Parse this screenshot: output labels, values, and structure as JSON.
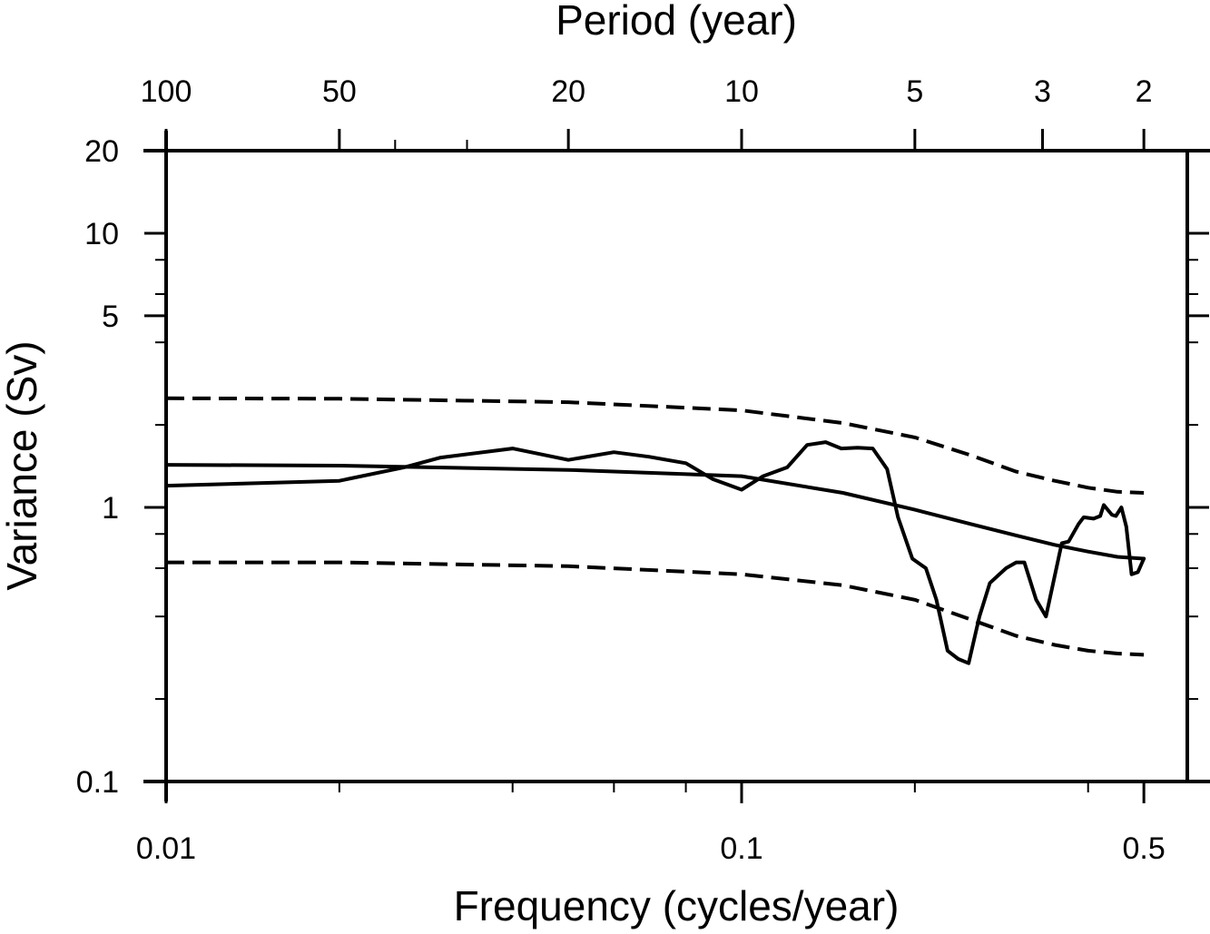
{
  "chart_data": {
    "type": "line",
    "title": "",
    "xlabel": "Frequency (cycles/year)",
    "ylabel": "Variance (Sv)",
    "top_xlabel": "Period (year)",
    "xscale": "log",
    "yscale": "log",
    "xlim": [
      0.01,
      0.5
    ],
    "ylim": [
      0.1,
      20
    ],
    "grid": false,
    "legend": "none",
    "x_ticks": [
      {
        "value": 0.01,
        "label": "0.01"
      },
      {
        "value": 0.1,
        "label": "0.1"
      },
      {
        "value": 0.5,
        "label": "0.5"
      }
    ],
    "x_minor_ticks": [
      0.02,
      0.04,
      0.06,
      0.08,
      0.2,
      0.4
    ],
    "top_ticks": [
      {
        "period": 100,
        "label": "100"
      },
      {
        "period": 50,
        "label": "50"
      },
      {
        "period": 20,
        "label": "20"
      },
      {
        "period": 10,
        "label": "10"
      },
      {
        "period": 5,
        "label": "5"
      },
      {
        "period": 3,
        "label": "3"
      },
      {
        "period": 2,
        "label": "2"
      }
    ],
    "top_minor_ticks": [
      40,
      30
    ],
    "y_ticks": [
      {
        "value": 20,
        "label": "20"
      },
      {
        "value": 10,
        "label": "10"
      },
      {
        "value": 5,
        "label": "5"
      },
      {
        "value": 1,
        "label": "1"
      },
      {
        "value": 0.1,
        "label": "0.1"
      }
    ],
    "y_minor_ticks": [
      8,
      6,
      4,
      2,
      0.8,
      0.6,
      0.4,
      0.2
    ],
    "series": [
      {
        "name": "spectrum",
        "style": "solid",
        "x": [
          0.01,
          0.02,
          0.0259,
          0.03,
          0.04,
          0.05,
          0.06,
          0.069,
          0.08,
          0.089,
          0.1,
          0.109,
          0.12,
          0.13,
          0.14,
          0.149,
          0.159,
          0.169,
          0.179,
          0.187,
          0.198,
          0.209,
          0.218,
          0.228,
          0.238,
          0.248,
          0.259,
          0.27,
          0.288,
          0.3,
          0.31,
          0.325,
          0.338,
          0.36,
          0.37,
          0.385,
          0.393,
          0.409,
          0.42,
          0.426,
          0.44,
          0.447,
          0.457,
          0.466,
          0.476,
          0.488,
          0.5
        ],
        "y": [
          1.2,
          1.25,
          1.4,
          1.52,
          1.64,
          1.49,
          1.59,
          1.53,
          1.45,
          1.27,
          1.16,
          1.3,
          1.4,
          1.69,
          1.73,
          1.64,
          1.65,
          1.64,
          1.38,
          0.92,
          0.65,
          0.6,
          0.46,
          0.3,
          0.28,
          0.27,
          0.4,
          0.53,
          0.6,
          0.63,
          0.63,
          0.46,
          0.4,
          0.74,
          0.75,
          0.87,
          0.92,
          0.91,
          0.93,
          1.02,
          0.94,
          0.93,
          1.0,
          0.85,
          0.57,
          0.58,
          0.65
        ]
      },
      {
        "name": "red-noise",
        "style": "solid",
        "x": [
          0.01,
          0.02,
          0.05,
          0.1,
          0.15,
          0.2,
          0.25,
          0.3,
          0.35,
          0.4,
          0.45,
          0.5
        ],
        "y": [
          1.43,
          1.42,
          1.37,
          1.3,
          1.13,
          0.98,
          0.87,
          0.79,
          0.73,
          0.69,
          0.66,
          0.65
        ]
      },
      {
        "name": "upper-bound",
        "style": "dashed",
        "x": [
          0.01,
          0.02,
          0.05,
          0.1,
          0.15,
          0.2,
          0.25,
          0.3,
          0.35,
          0.4,
          0.45,
          0.5
        ],
        "y": [
          2.5,
          2.49,
          2.42,
          2.26,
          2.03,
          1.8,
          1.55,
          1.35,
          1.25,
          1.18,
          1.14,
          1.13
        ]
      },
      {
        "name": "lower-bound",
        "style": "dashed",
        "x": [
          0.01,
          0.02,
          0.05,
          0.1,
          0.15,
          0.2,
          0.25,
          0.3,
          0.35,
          0.4,
          0.45,
          0.5
        ],
        "y": [
          0.63,
          0.63,
          0.61,
          0.57,
          0.52,
          0.46,
          0.39,
          0.34,
          0.315,
          0.3,
          0.293,
          0.29
        ]
      }
    ],
    "colors": {
      "line": "#000000",
      "background": "#ffffff"
    }
  }
}
